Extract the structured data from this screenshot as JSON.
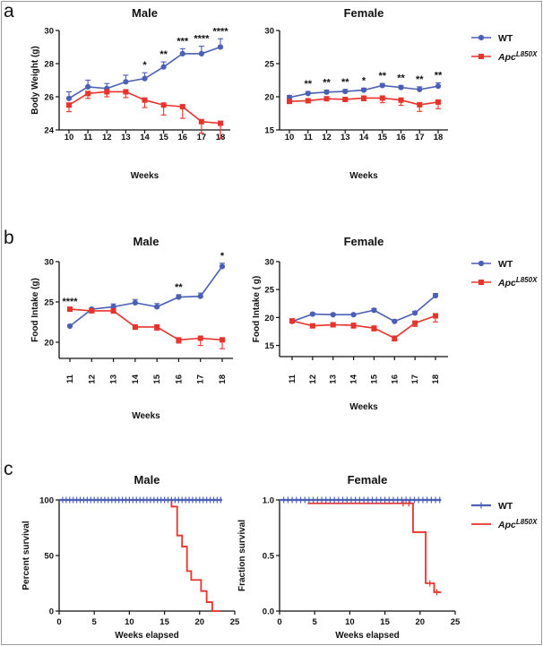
{
  "panels": [
    {
      "letter": "a"
    },
    {
      "letter": "b"
    },
    {
      "letter": "c"
    }
  ],
  "colors": {
    "wt": "#4a5fb5",
    "apc": "#e8332c",
    "axis": "#111111"
  },
  "chart_data": [
    {
      "id": "a-male",
      "type": "line",
      "title": "Male",
      "xlabel": "Weeks",
      "ylabel": "Body Weight (g)",
      "categories": [
        "10",
        "11",
        "12",
        "13",
        "14",
        "15",
        "16",
        "17",
        "18"
      ],
      "ylim": [
        24,
        30
      ],
      "yticks": [
        24,
        26,
        28,
        30
      ],
      "series": [
        {
          "name": "WT",
          "values": [
            25.9,
            26.6,
            26.5,
            26.9,
            27.1,
            27.8,
            28.6,
            28.6,
            29.0
          ],
          "err": [
            0.4,
            0.4,
            0.3,
            0.4,
            0.35,
            0.3,
            0.3,
            0.45,
            0.5
          ]
        },
        {
          "name": "ApcL850X",
          "values": [
            25.5,
            26.2,
            26.3,
            26.3,
            25.8,
            25.5,
            25.4,
            24.5,
            24.4
          ],
          "err": [
            0.4,
            0.3,
            0.3,
            0.35,
            0.45,
            0.6,
            0.7,
            0.7,
            0.9
          ]
        }
      ],
      "annotations": [
        "",
        "",
        "",
        "",
        "*",
        "**",
        "***",
        "****",
        "****"
      ]
    },
    {
      "id": "a-female",
      "type": "line",
      "title": "Female",
      "xlabel": "Weeks",
      "ylabel": "",
      "categories": [
        "10",
        "11",
        "12",
        "13",
        "14",
        "15",
        "16",
        "17",
        "18"
      ],
      "ylim": [
        15,
        30
      ],
      "yticks": [
        15,
        20,
        25,
        30
      ],
      "series": [
        {
          "name": "WT",
          "values": [
            19.9,
            20.5,
            20.7,
            20.8,
            21.0,
            21.7,
            21.4,
            21.1,
            21.6
          ],
          "err": [
            0.3,
            0.3,
            0.3,
            0.3,
            0.3,
            0.3,
            0.3,
            0.4,
            0.5
          ]
        },
        {
          "name": "ApcL850X",
          "values": [
            19.3,
            19.4,
            19.7,
            19.6,
            19.8,
            19.8,
            19.5,
            18.8,
            19.2
          ],
          "err": [
            0.3,
            0.3,
            0.3,
            0.3,
            0.4,
            0.7,
            0.8,
            1.0,
            1.0
          ]
        }
      ],
      "annotations": [
        "",
        "**",
        "**",
        "**",
        "*",
        "**",
        "**",
        "**",
        "**"
      ]
    },
    {
      "id": "b-male",
      "type": "line",
      "title": "Male",
      "xlabel": "Weeks",
      "ylabel": "Food Intake (g)",
      "categories": [
        "11",
        "12",
        "13",
        "14",
        "15",
        "16",
        "17",
        "18"
      ],
      "ylim": [
        18,
        30
      ],
      "yticks": [
        20,
        25,
        30
      ],
      "series": [
        {
          "name": "WT",
          "values": [
            22.0,
            24.1,
            24.4,
            24.9,
            24.4,
            25.6,
            25.7,
            29.4
          ],
          "err": [
            0.15,
            0.15,
            0.35,
            0.4,
            0.4,
            0.3,
            0.4,
            0.4
          ]
        },
        {
          "name": "ApcL850X",
          "values": [
            24.1,
            23.9,
            23.9,
            21.9,
            21.9,
            20.3,
            20.5,
            20.3
          ],
          "err": [
            0.2,
            0.2,
            0.3,
            0.3,
            0.4,
            0.4,
            0.9,
            1.1
          ]
        }
      ],
      "annotations": [
        "****",
        "",
        "",
        "",
        "",
        "**",
        "",
        "*"
      ]
    },
    {
      "id": "b-female",
      "type": "line",
      "title": "Female",
      "xlabel": "Weeks",
      "ylabel": "Food Intake ( g)",
      "categories": [
        "11",
        "12",
        "13",
        "14",
        "15",
        "16",
        "17",
        "18"
      ],
      "ylim": [
        13,
        30
      ],
      "yticks": [
        15,
        20,
        25,
        30
      ],
      "series": [
        {
          "name": "WT",
          "values": [
            19.3,
            20.6,
            20.5,
            20.5,
            21.3,
            19.3,
            20.8,
            23.9
          ],
          "err": [
            0.2,
            0.2,
            0.2,
            0.2,
            0.3,
            0.3,
            0.3,
            0.4
          ]
        },
        {
          "name": "ApcL850X",
          "values": [
            19.4,
            18.5,
            18.7,
            18.6,
            18.1,
            16.3,
            19.0,
            20.3
          ],
          "err": [
            0.3,
            0.3,
            0.4,
            0.5,
            0.5,
            0.5,
            0.6,
            1.1
          ]
        }
      ],
      "annotations": [
        "",
        "",
        "",
        "",
        "",
        "",
        "",
        ""
      ]
    },
    {
      "id": "c-male",
      "type": "line",
      "step": true,
      "title": "Male",
      "xlabel": "Weeks elapsed",
      "ylabel": "Percent survival",
      "xlim": [
        0,
        25
      ],
      "xticks": [
        0,
        5,
        10,
        15,
        20,
        25
      ],
      "ylim": [
        0,
        100
      ],
      "yticks": [
        0,
        50,
        100
      ],
      "series": [
        {
          "name": "WT",
          "x": [
            0,
            23.2
          ],
          "y": [
            100,
            100
          ],
          "censor": [
            0.5,
            1.0,
            1.5,
            2.0,
            2.5,
            3.0,
            3.5,
            4.0,
            4.5,
            5.0,
            5.5,
            6.0,
            6.5,
            7.0,
            7.5,
            8.0,
            8.5,
            9.0,
            9.5,
            10.0,
            10.5,
            11.0,
            11.5,
            12.0,
            12.5,
            13.0,
            13.5,
            14.0,
            14.5,
            15.0,
            15.5,
            16.0,
            16.5,
            17.0,
            17.5,
            18.0,
            18.5,
            19.0,
            19.5,
            20.0,
            20.5,
            21.0,
            21.5,
            22.0,
            22.5,
            23.0
          ]
        },
        {
          "name": "ApcL850X",
          "x": [
            0,
            16.0,
            16.8,
            17.5,
            18.2,
            18.8,
            19.5,
            20.2,
            21.0,
            21.8,
            22.6,
            23.0
          ],
          "y": [
            100,
            94,
            68,
            58,
            36,
            28,
            28,
            18,
            8,
            0,
            0,
            0
          ]
        }
      ]
    },
    {
      "id": "c-female",
      "type": "line",
      "step": true,
      "title": "Female",
      "xlabel": "Weeks elapsed",
      "ylabel": "Fraction survival",
      "xlim": [
        0,
        25
      ],
      "xticks": [
        0,
        5,
        10,
        15,
        20,
        25
      ],
      "ylim": [
        0,
        1.0
      ],
      "yticks": [
        0.0,
        0.5,
        1.0
      ],
      "ytickfmt": 1,
      "series": [
        {
          "name": "WT",
          "x": [
            0,
            23.0
          ],
          "y": [
            1.0,
            1.0
          ],
          "censor": [
            0.6,
            1.2,
            1.8,
            2.4,
            3.0,
            3.6,
            4.2,
            4.8,
            5.4,
            6.0,
            6.6,
            7.2,
            7.8,
            8.4,
            9.0,
            9.6,
            10.2,
            10.8,
            11.4,
            12.0,
            12.6,
            13.2,
            13.8,
            14.4,
            15.0,
            15.6,
            16.2,
            16.8,
            17.4,
            18.0,
            18.6,
            19.2,
            19.8,
            20.4,
            21.0,
            21.6,
            22.2,
            22.8
          ]
        },
        {
          "name": "ApcL850X",
          "x": [
            4.0,
            17.0,
            19.0,
            20.8,
            22.0,
            23.0
          ],
          "y": [
            0.97,
            0.97,
            0.71,
            0.25,
            0.17,
            0.17
          ],
          "censor": [
            17.6,
            18.4,
            21.4,
            22.4
          ]
        }
      ]
    }
  ],
  "legend": {
    "wt_label": "WT",
    "apc_base": "Apc",
    "apc_sup": "L850X"
  }
}
